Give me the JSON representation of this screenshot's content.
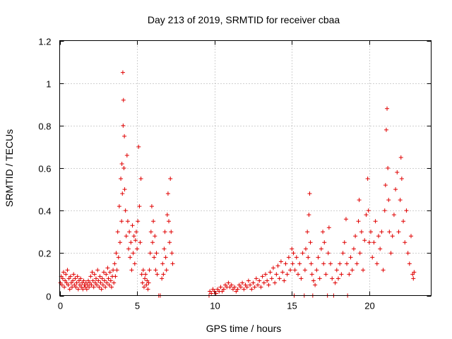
{
  "chart_data": {
    "type": "scatter",
    "title": "Day 213 of 2019, SRMTID for receiver cbaa",
    "xlabel": "GPS time / hours",
    "ylabel": "SRMTID / TECUs",
    "xlim": [
      0,
      24
    ],
    "ylim": [
      0,
      1.2
    ],
    "xticks": [
      0,
      5,
      10,
      15,
      20
    ],
    "xtick_labels": [
      "0",
      "5",
      "10",
      "15",
      "20"
    ],
    "yticks": [
      0,
      0.2,
      0.4,
      0.6,
      0.8,
      1.0,
      1.2
    ],
    "ytick_labels": [
      "0",
      "0.2",
      "0.4",
      "0.6",
      "0.8",
      "1",
      "1.2"
    ],
    "grid": true,
    "marker": "plus",
    "marker_color": "#e00000",
    "series": [
      {
        "name": "SRMTID",
        "points": [
          [
            0.05,
            0.06
          ],
          [
            0.1,
            0.09
          ],
          [
            0.15,
            0.05
          ],
          [
            0.2,
            0.08
          ],
          [
            0.25,
            0.11
          ],
          [
            0.3,
            0.04
          ],
          [
            0.35,
            0.07
          ],
          [
            0.4,
            0.1
          ],
          [
            0.45,
            0.06
          ],
          [
            0.5,
            0.12
          ],
          [
            0.55,
            0.05
          ],
          [
            0.6,
            0.08
          ],
          [
            0.65,
            0.03
          ],
          [
            0.7,
            0.09
          ],
          [
            0.75,
            0.06
          ],
          [
            0.8,
            0.04
          ],
          [
            0.85,
            0.07
          ],
          [
            0.9,
            0.1
          ],
          [
            0.95,
            0.05
          ],
          [
            1.0,
            0.08
          ],
          [
            1.05,
            0.04
          ],
          [
            1.1,
            0.06
          ],
          [
            1.15,
            0.09
          ],
          [
            1.2,
            0.03
          ],
          [
            1.25,
            0.07
          ],
          [
            1.3,
            0.05
          ],
          [
            1.35,
            0.08
          ],
          [
            1.4,
            0.04
          ],
          [
            1.45,
            0.06
          ],
          [
            1.5,
            0.03
          ],
          [
            1.55,
            0.07
          ],
          [
            1.6,
            0.05
          ],
          [
            1.65,
            0.04
          ],
          [
            1.7,
            0.06
          ],
          [
            1.75,
            0.03
          ],
          [
            1.8,
            0.05
          ],
          [
            1.85,
            0.07
          ],
          [
            1.9,
            0.04
          ],
          [
            1.95,
            0.06
          ],
          [
            2.0,
            0.09
          ],
          [
            2.05,
            0.05
          ],
          [
            2.1,
            0.11
          ],
          [
            2.15,
            0.07
          ],
          [
            2.2,
            0.04
          ],
          [
            2.25,
            0.1
          ],
          [
            2.3,
            0.06
          ],
          [
            2.35,
            0.08
          ],
          [
            2.4,
            0.05
          ],
          [
            2.45,
            0.12
          ],
          [
            2.5,
            0.07
          ],
          [
            2.55,
            0.04
          ],
          [
            2.6,
            0.09
          ],
          [
            2.65,
            0.06
          ],
          [
            2.7,
            0.03
          ],
          [
            2.75,
            0.08
          ],
          [
            2.8,
            0.05
          ],
          [
            2.85,
            0.11
          ],
          [
            2.9,
            0.07
          ],
          [
            2.95,
            0.04
          ],
          [
            3.0,
            0.1
          ],
          [
            3.05,
            0.06
          ],
          [
            3.1,
            0.13
          ],
          [
            3.15,
            0.08
          ],
          [
            3.2,
            0.05
          ],
          [
            3.25,
            0.11
          ],
          [
            3.3,
            0.07
          ],
          [
            3.35,
            0.04
          ],
          [
            3.4,
            0.09
          ],
          [
            3.45,
            0.12
          ],
          [
            3.5,
            0.06
          ],
          [
            3.55,
            0.15
          ],
          [
            3.6,
            0.09
          ],
          [
            3.65,
            0.2
          ],
          [
            3.7,
            0.12
          ],
          [
            3.75,
            0.3
          ],
          [
            3.8,
            0.18
          ],
          [
            3.85,
            0.42
          ],
          [
            3.9,
            0.25
          ],
          [
            3.95,
            0.55
          ],
          [
            4.0,
            0.35
          ],
          [
            4.02,
            0.62
          ],
          [
            4.05,
            0.48
          ],
          [
            4.08,
            1.05
          ],
          [
            4.1,
            0.8
          ],
          [
            4.12,
            0.92
          ],
          [
            4.15,
            0.6
          ],
          [
            4.18,
            0.75
          ],
          [
            4.2,
            0.5
          ],
          [
            4.25,
            0.4
          ],
          [
            4.3,
            0.28
          ],
          [
            4.35,
            0.66
          ],
          [
            4.4,
            0.35
          ],
          [
            4.45,
            0.22
          ],
          [
            4.5,
            0.3
          ],
          [
            4.55,
            0.18
          ],
          [
            4.6,
            0.25
          ],
          [
            4.65,
            0.12
          ],
          [
            4.7,
            0.33
          ],
          [
            4.75,
            0.2
          ],
          [
            4.8,
            0.28
          ],
          [
            4.85,
            0.15
          ],
          [
            4.9,
            0.26
          ],
          [
            4.95,
            0.3
          ],
          [
            5.0,
            0.22
          ],
          [
            5.05,
            0.35
          ],
          [
            5.1,
            0.7
          ],
          [
            5.15,
            0.42
          ],
          [
            5.2,
            0.25
          ],
          [
            5.25,
            0.55
          ],
          [
            5.3,
            0.1
          ],
          [
            5.35,
            0.06
          ],
          [
            5.4,
            0.12
          ],
          [
            5.45,
            0.04
          ],
          [
            5.5,
            0.08
          ],
          [
            5.55,
            0.1
          ],
          [
            5.6,
            0.05
          ],
          [
            5.65,
            0.07
          ],
          [
            5.7,
            0.03
          ],
          [
            5.75,
            0.06
          ],
          [
            5.8,
            0.12
          ],
          [
            5.85,
            0.2
          ],
          [
            5.9,
            0.3
          ],
          [
            5.95,
            0.42
          ],
          [
            6.0,
            0.25
          ],
          [
            6.05,
            0.35
          ],
          [
            6.1,
            0.18
          ],
          [
            6.15,
            0.28
          ],
          [
            6.2,
            0.12
          ],
          [
            6.25,
            0.2
          ],
          [
            6.3,
            0.1
          ],
          [
            6.4,
            0.0
          ],
          [
            6.5,
            0.0
          ],
          [
            6.6,
            0.08
          ],
          [
            6.65,
            0.15
          ],
          [
            6.7,
            0.1
          ],
          [
            6.75,
            0.22
          ],
          [
            6.8,
            0.3
          ],
          [
            6.85,
            0.18
          ],
          [
            6.9,
            0.12
          ],
          [
            6.95,
            0.38
          ],
          [
            7.0,
            0.48
          ],
          [
            7.05,
            0.35
          ],
          [
            7.1,
            0.25
          ],
          [
            7.15,
            0.55
          ],
          [
            7.2,
            0.3
          ],
          [
            7.25,
            0.2
          ],
          [
            7.3,
            0.15
          ],
          [
            9.65,
            0.0
          ],
          [
            9.7,
            0.02
          ],
          [
            9.8,
            0.01
          ],
          [
            9.9,
            0.03
          ],
          [
            10.0,
            0.02
          ],
          [
            10.1,
            0.01
          ],
          [
            10.2,
            0.03
          ],
          [
            10.3,
            0.02
          ],
          [
            10.4,
            0.04
          ],
          [
            10.5,
            0.02
          ],
          [
            10.6,
            0.03
          ],
          [
            10.7,
            0.05
          ],
          [
            10.8,
            0.04
          ],
          [
            10.9,
            0.06
          ],
          [
            11.0,
            0.04
          ],
          [
            11.1,
            0.05
          ],
          [
            11.2,
            0.03
          ],
          [
            11.3,
            0.04
          ],
          [
            11.4,
            0.02
          ],
          [
            11.5,
            0.03
          ],
          [
            11.6,
            0.05
          ],
          [
            11.7,
            0.04
          ],
          [
            11.8,
            0.06
          ],
          [
            11.9,
            0.03
          ],
          [
            12.0,
            0.05
          ],
          [
            12.1,
            0.04
          ],
          [
            12.2,
            0.07
          ],
          [
            12.3,
            0.05
          ],
          [
            12.4,
            0.03
          ],
          [
            12.5,
            0.06
          ],
          [
            12.6,
            0.04
          ],
          [
            12.7,
            0.08
          ],
          [
            12.8,
            0.05
          ],
          [
            12.9,
            0.07
          ],
          [
            13.0,
            0.04
          ],
          [
            13.1,
            0.09
          ],
          [
            13.2,
            0.06
          ],
          [
            13.3,
            0.1
          ],
          [
            13.4,
            0.07
          ],
          [
            13.5,
            0.05
          ],
          [
            13.6,
            0.11
          ],
          [
            13.7,
            0.08
          ],
          [
            13.8,
            0.13
          ],
          [
            13.9,
            0.06
          ],
          [
            14.0,
            0.1
          ],
          [
            14.1,
            0.14
          ],
          [
            14.2,
            0.08
          ],
          [
            14.3,
            0.16
          ],
          [
            14.4,
            0.11
          ],
          [
            14.5,
            0.07
          ],
          [
            14.6,
            0.15
          ],
          [
            14.7,
            0.1
          ],
          [
            14.8,
            0.18
          ],
          [
            14.9,
            0.12
          ],
          [
            15.0,
            0.22
          ],
          [
            15.05,
            0.15
          ],
          [
            15.1,
            0.2
          ],
          [
            15.15,
            0.0
          ],
          [
            15.2,
            0.12
          ],
          [
            15.3,
            0.18
          ],
          [
            15.4,
            0.1
          ],
          [
            15.5,
            0.15
          ],
          [
            15.6,
            0.08
          ],
          [
            15.7,
            0.2
          ],
          [
            15.8,
            0.0
          ],
          [
            15.85,
            0.12
          ],
          [
            15.9,
            0.22
          ],
          [
            16.0,
            0.3
          ],
          [
            16.05,
            0.18
          ],
          [
            16.1,
            0.38
          ],
          [
            16.15,
            0.48
          ],
          [
            16.2,
            0.25
          ],
          [
            16.25,
            0.15
          ],
          [
            16.3,
            0.1
          ],
          [
            16.35,
            0.0
          ],
          [
            16.4,
            0.07
          ],
          [
            16.5,
            0.05
          ],
          [
            16.6,
            0.12
          ],
          [
            16.7,
            0.18
          ],
          [
            16.8,
            0.08
          ],
          [
            16.9,
            0.22
          ],
          [
            17.0,
            0.3
          ],
          [
            17.05,
            0.15
          ],
          [
            17.1,
            0.25
          ],
          [
            17.2,
            0.1
          ],
          [
            17.3,
            0.0
          ],
          [
            17.35,
            0.2
          ],
          [
            17.4,
            0.32
          ],
          [
            17.5,
            0.15
          ],
          [
            17.6,
            0.08
          ],
          [
            17.7,
            0.0
          ],
          [
            17.8,
            0.06
          ],
          [
            17.9,
            0.12
          ],
          [
            18.0,
            0.08
          ],
          [
            18.1,
            0.15
          ],
          [
            18.2,
            0.1
          ],
          [
            18.3,
            0.2
          ],
          [
            18.4,
            0.25
          ],
          [
            18.5,
            0.36
          ],
          [
            18.55,
            0.15
          ],
          [
            18.6,
            0.0
          ],
          [
            18.7,
            0.1
          ],
          [
            18.8,
            0.18
          ],
          [
            18.9,
            0.12
          ],
          [
            19.0,
            0.22
          ],
          [
            19.1,
            0.28
          ],
          [
            19.2,
            0.15
          ],
          [
            19.3,
            0.35
          ],
          [
            19.35,
            0.45
          ],
          [
            19.4,
            0.2
          ],
          [
            19.5,
            0.3
          ],
          [
            19.6,
            0.12
          ],
          [
            19.7,
            0.26
          ],
          [
            19.8,
            0.38
          ],
          [
            19.9,
            0.55
          ],
          [
            19.95,
            0.4
          ],
          [
            20.0,
            0.25
          ],
          [
            20.1,
            0.3
          ],
          [
            20.2,
            0.18
          ],
          [
            20.3,
            0.25
          ],
          [
            20.4,
            0.35
          ],
          [
            20.5,
            0.15
          ],
          [
            20.6,
            0.28
          ],
          [
            20.7,
            0.22
          ],
          [
            20.8,
            0.3
          ],
          [
            20.9,
            0.12
          ],
          [
            21.0,
            0.4
          ],
          [
            21.05,
            0.52
          ],
          [
            21.1,
            0.78
          ],
          [
            21.15,
            0.88
          ],
          [
            21.2,
            0.6
          ],
          [
            21.25,
            0.45
          ],
          [
            21.3,
            0.3
          ],
          [
            21.4,
            0.2
          ],
          [
            21.5,
            0.28
          ],
          [
            21.6,
            0.38
          ],
          [
            21.7,
            0.5
          ],
          [
            21.8,
            0.58
          ],
          [
            21.9,
            0.3
          ],
          [
            22.0,
            0.45
          ],
          [
            22.05,
            0.65
          ],
          [
            22.1,
            0.55
          ],
          [
            22.2,
            0.35
          ],
          [
            22.3,
            0.25
          ],
          [
            22.4,
            0.4
          ],
          [
            22.5,
            0.2
          ],
          [
            22.6,
            0.15
          ],
          [
            22.7,
            0.28
          ],
          [
            22.8,
            0.1
          ],
          [
            22.85,
            0.08
          ],
          [
            22.9,
            0.11
          ]
        ]
      }
    ]
  }
}
